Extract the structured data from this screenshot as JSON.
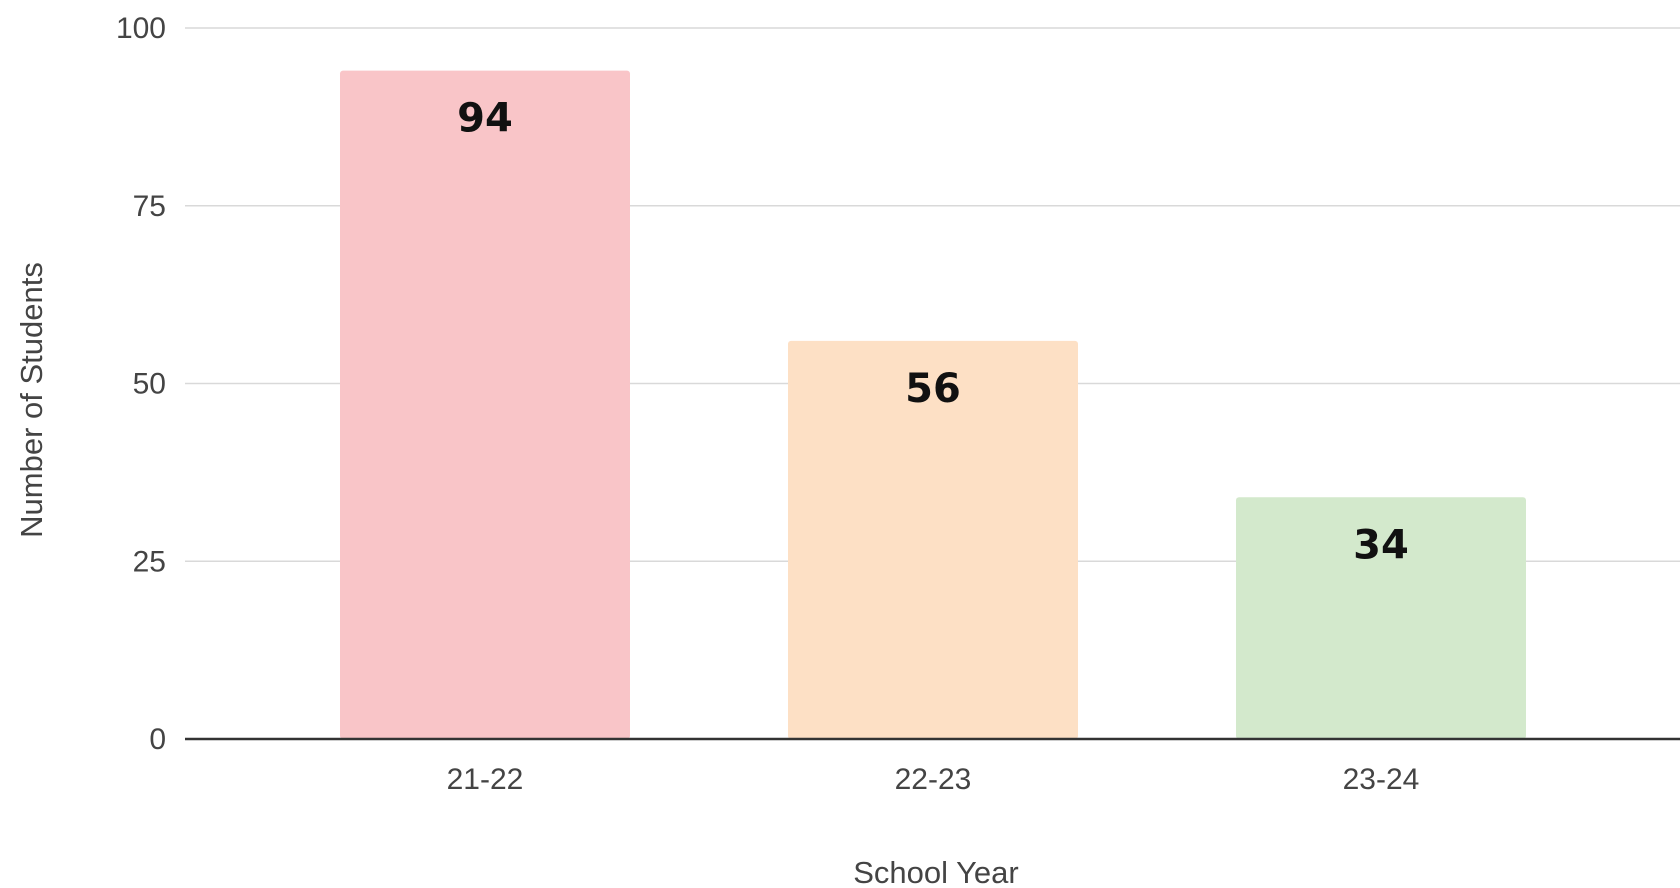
{
  "chart_data": {
    "type": "bar",
    "categories": [
      "21-22",
      "22-23",
      "23-24"
    ],
    "values": [
      94,
      56,
      34
    ],
    "data_labels": [
      "94",
      "56",
      "34"
    ],
    "bar_colors": [
      "#f9c5c8",
      "#fde0c5",
      "#d3e9cc"
    ],
    "xlabel": "School Year",
    "ylabel": "Number of Students",
    "ylim": [
      0,
      100
    ],
    "yticks": [
      0,
      25,
      50,
      75,
      100
    ],
    "ytick_labels": [
      "0",
      "25",
      "50",
      "75",
      "100"
    ],
    "grid": true,
    "gridline_color": "#d9d9d9",
    "baseline_color": "#333333",
    "legend": "none"
  }
}
